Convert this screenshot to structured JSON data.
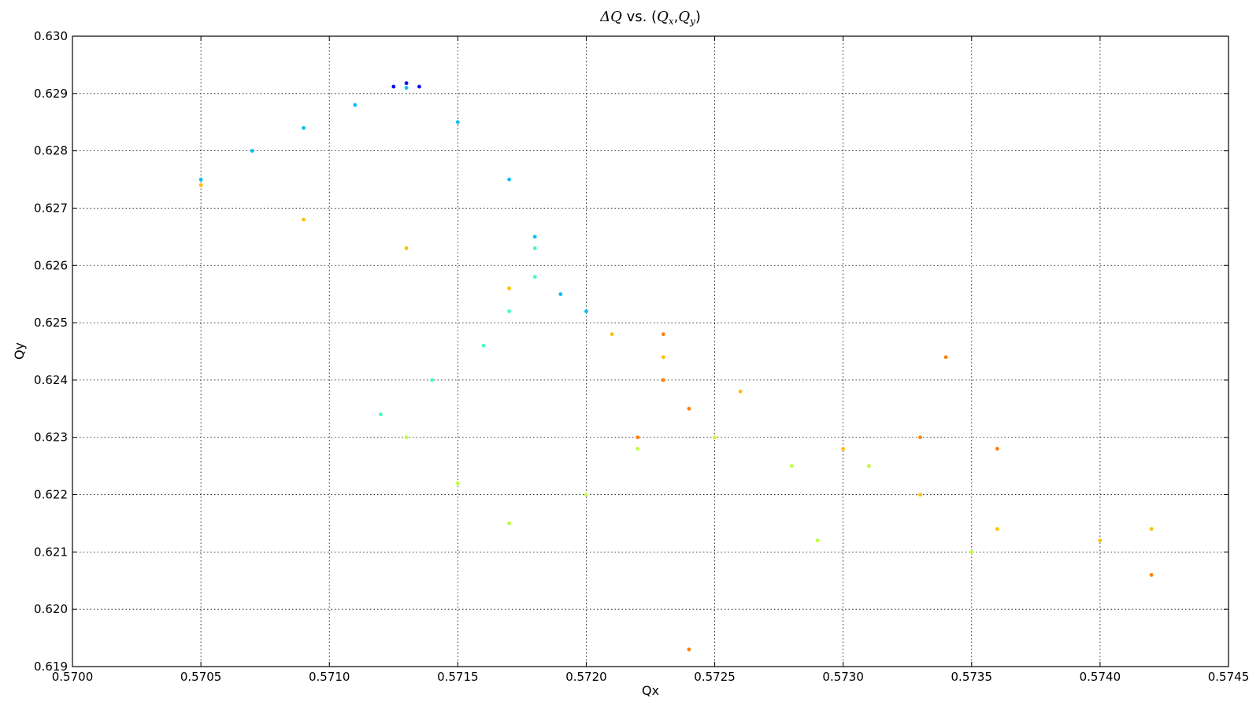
{
  "chart_data": {
    "type": "scatter",
    "title": {
      "prefix": "ΔQ",
      "mid": " vs. (",
      "qx": "Q",
      "qx_sub": "x",
      "comma": ",",
      "qy": "Q",
      "qy_sub": "y",
      "suffix": ")"
    },
    "xlabel": "Qx",
    "ylabel": "Qy",
    "xlim": [
      0.57,
      0.5745
    ],
    "ylim": [
      0.619,
      0.63
    ],
    "xticks": [
      "0.5700",
      "0.5705",
      "0.5710",
      "0.5715",
      "0.5720",
      "0.5725",
      "0.5730",
      "0.5735",
      "0.5740",
      "0.5745"
    ],
    "yticks": [
      "0.619",
      "0.620",
      "0.621",
      "0.622",
      "0.623",
      "0.624",
      "0.625",
      "0.626",
      "0.627",
      "0.628",
      "0.629",
      "0.630"
    ],
    "grid": true,
    "grid_style": "dotted",
    "colormap": [
      "#0000ff",
      "#00bfff",
      "#40ffbf",
      "#bfff40",
      "#ffff00",
      "#ffbf00",
      "#ff8000"
    ],
    "series": [
      {
        "color": "#00bfff",
        "values": [
          [
            0.5705,
            0.6275
          ],
          [
            0.5707,
            0.628
          ],
          [
            0.5709,
            0.6284
          ],
          [
            0.5711,
            0.6288
          ],
          [
            0.5713,
            0.6291
          ],
          [
            0.5715,
            0.6285
          ],
          [
            0.5717,
            0.6275
          ],
          [
            0.5718,
            0.6265
          ],
          [
            0.5719,
            0.6255
          ],
          [
            0.572,
            0.6252
          ]
        ]
      },
      {
        "color": "#40ffbf",
        "values": [
          [
            0.5712,
            0.6234
          ],
          [
            0.5714,
            0.624
          ],
          [
            0.5716,
            0.6246
          ],
          [
            0.5717,
            0.6252
          ],
          [
            0.5718,
            0.6258
          ],
          [
            0.5718,
            0.6263
          ]
        ]
      },
      {
        "color": "#ffbf00",
        "values": [
          [
            0.5705,
            0.6274
          ],
          [
            0.5709,
            0.6268
          ],
          [
            0.5713,
            0.6263
          ],
          [
            0.5717,
            0.6256
          ],
          [
            0.5721,
            0.6248
          ],
          [
            0.5723,
            0.6244
          ],
          [
            0.5726,
            0.6238
          ],
          [
            0.573,
            0.6228
          ],
          [
            0.5733,
            0.622
          ],
          [
            0.5736,
            0.6214
          ],
          [
            0.574,
            0.6212
          ],
          [
            0.5742,
            0.6214
          ]
        ]
      },
      {
        "color": "#ff8000",
        "values": [
          [
            0.5722,
            0.623
          ],
          [
            0.5723,
            0.624
          ],
          [
            0.5723,
            0.6248
          ],
          [
            0.5724,
            0.6235
          ],
          [
            0.5725,
            0.623
          ],
          [
            0.5731,
            0.6225
          ],
          [
            0.5733,
            0.623
          ],
          [
            0.5734,
            0.6244
          ],
          [
            0.5736,
            0.6228
          ],
          [
            0.5742,
            0.6206
          ],
          [
            0.5724,
            0.6193
          ]
        ]
      },
      {
        "color": "#bfff40",
        "values": [
          [
            0.5713,
            0.623
          ],
          [
            0.5715,
            0.6222
          ],
          [
            0.5717,
            0.6215
          ],
          [
            0.572,
            0.622
          ],
          [
            0.5722,
            0.6228
          ],
          [
            0.5725,
            0.623
          ],
          [
            0.5728,
            0.6225
          ],
          [
            0.5729,
            0.6212
          ],
          [
            0.5731,
            0.6225
          ],
          [
            0.5735,
            0.621
          ]
        ]
      },
      {
        "color": "#0000ff",
        "values": [
          [
            0.57125,
            0.62912
          ],
          [
            0.5713,
            0.62918
          ],
          [
            0.57135,
            0.62912
          ]
        ]
      }
    ]
  }
}
